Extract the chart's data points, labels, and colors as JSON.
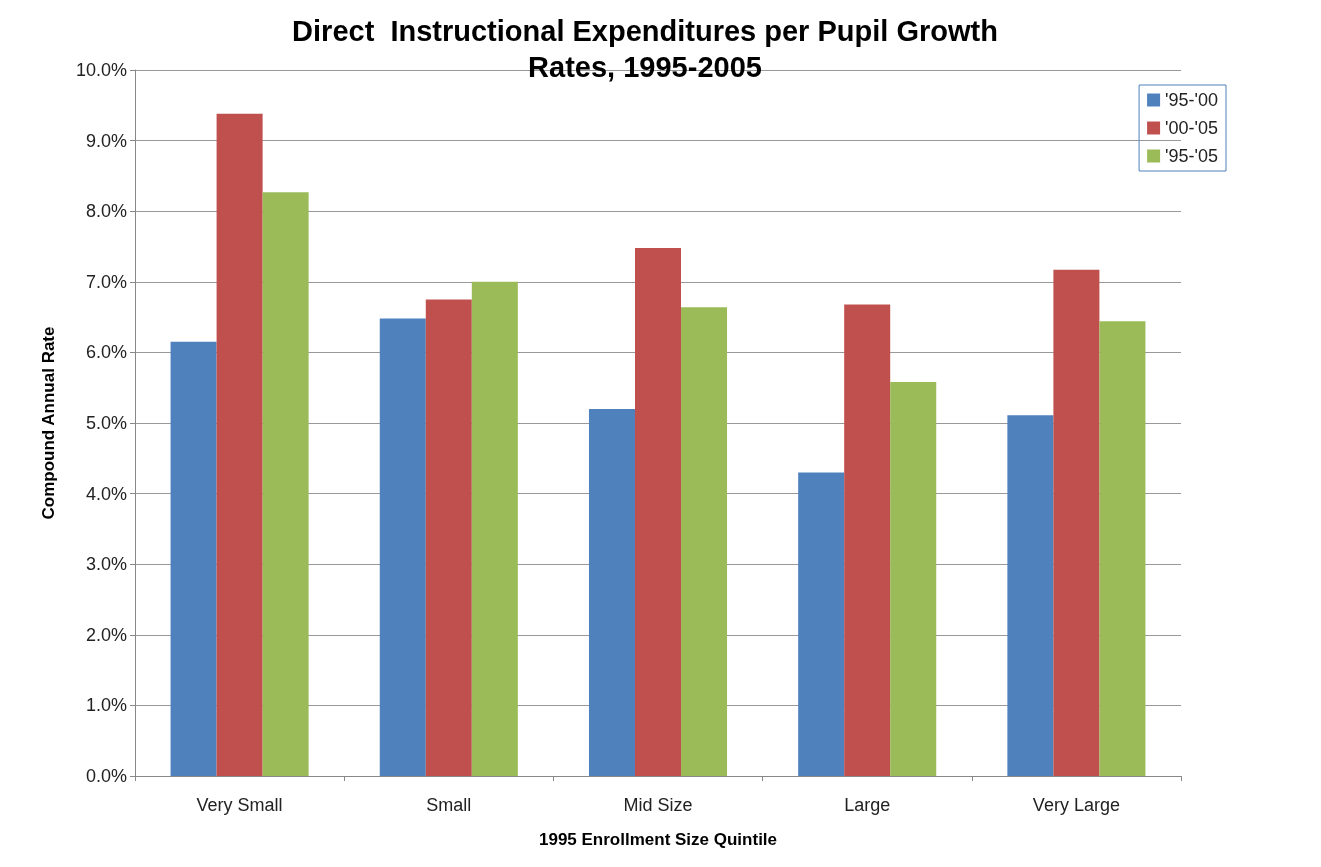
{
  "chart_data": {
    "type": "bar",
    "title": "Direct  Instructional Expenditures per Pupil Growth\nRates, 1995-2005",
    "xlabel": "1995 Enrollment Size Quintile",
    "ylabel": "Compound Annual Rate",
    "categories": [
      "Very Small",
      "Small",
      "Mid Size",
      "Large",
      "Very Large"
    ],
    "series": [
      {
        "name": "'95-'00",
        "color": "#4f81bd",
        "values": [
          6.15,
          6.48,
          5.2,
          4.3,
          5.11
        ]
      },
      {
        "name": "'00-'05",
        "color": "#c0504d",
        "values": [
          9.38,
          6.75,
          7.48,
          6.68,
          7.17
        ]
      },
      {
        "name": "'95-'05",
        "color": "#9bbb59",
        "values": [
          8.27,
          7.0,
          6.64,
          5.58,
          6.44
        ]
      }
    ],
    "ylim": [
      0,
      10
    ],
    "yticks": [
      {
        "value": 0,
        "label": "0.0%"
      },
      {
        "value": 1,
        "label": "1.0%"
      },
      {
        "value": 2,
        "label": "2.0%"
      },
      {
        "value": 3,
        "label": "3.0%"
      },
      {
        "value": 4,
        "label": "4.0%"
      },
      {
        "value": 5,
        "label": "5.0%"
      },
      {
        "value": 6,
        "label": "6.0%"
      },
      {
        "value": 7,
        "label": "7.0%"
      },
      {
        "value": 8,
        "label": "8.0%"
      },
      {
        "value": 9,
        "label": "9.0%"
      },
      {
        "value": 10,
        "label": "10.0%"
      }
    ],
    "grid": "y",
    "legend": "top right"
  }
}
